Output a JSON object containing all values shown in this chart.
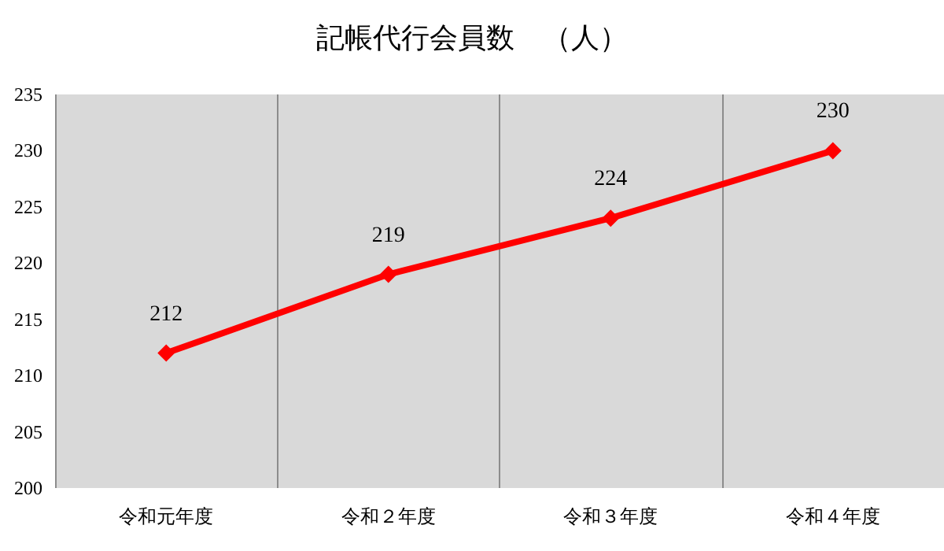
{
  "chart_data": {
    "type": "line",
    "title": "記帳代行会員数　（人）",
    "categories": [
      "令和元年度",
      "令和２年度",
      "令和３年度",
      "令和４年度"
    ],
    "series": [
      {
        "color": "#ff0000",
        "values": [
          212,
          219,
          224,
          230
        ]
      }
    ],
    "ylim": [
      200,
      235
    ],
    "yticks": [
      200,
      205,
      210,
      215,
      220,
      225,
      230,
      235
    ],
    "grid": "x",
    "marker": "diamond",
    "line_style": "solid",
    "data_labels": true
  }
}
